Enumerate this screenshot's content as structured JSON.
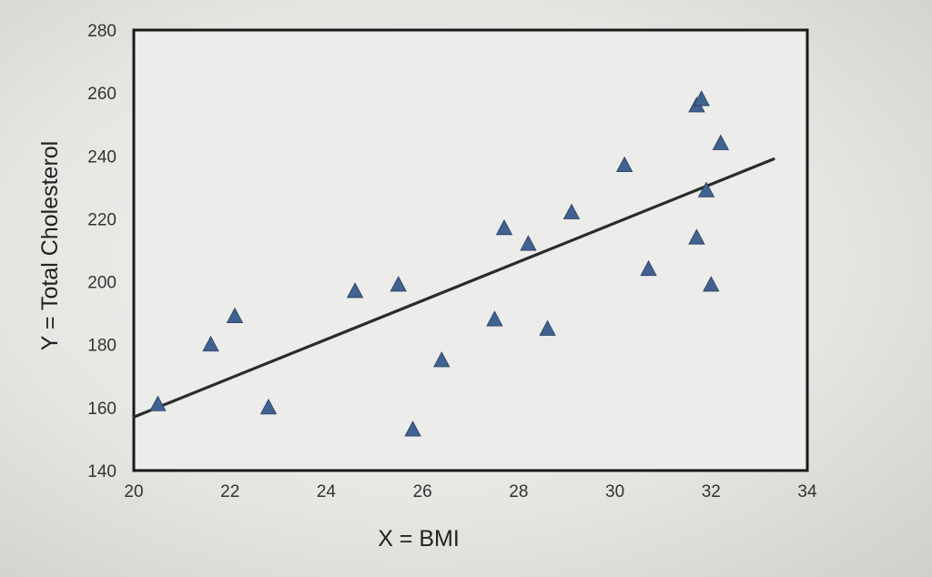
{
  "chart_data": {
    "type": "scatter",
    "title": "",
    "xlabel": "X = BMI",
    "ylabel": "Y = Total Cholesterol",
    "xlim": [
      20,
      34
    ],
    "ylim": [
      140,
      280
    ],
    "xticks": [
      20,
      22,
      24,
      26,
      28,
      30,
      32,
      34
    ],
    "yticks": [
      140,
      160,
      180,
      200,
      220,
      240,
      260,
      280
    ],
    "xtick_labels": [
      "20",
      "22",
      "24",
      "26",
      "28",
      "30",
      "32",
      "34"
    ],
    "ytick_labels": [
      "140",
      "160",
      "180",
      "200",
      "220",
      "240",
      "260",
      "280"
    ],
    "grid": false,
    "marker": "triangle",
    "marker_color": "#3f6291",
    "line_color": "#2b2b2b",
    "series": [
      {
        "x": [
          20.5,
          21.6,
          22.1,
          22.8,
          24.6,
          25.5,
          25.8,
          26.4,
          27.5,
          27.7,
          28.2,
          28.6,
          29.1,
          30.2,
          30.7,
          31.7,
          31.8,
          31.7,
          32.0,
          31.9,
          32.2
        ],
        "y": [
          161,
          180,
          189,
          160,
          197,
          199,
          153,
          175,
          188,
          217,
          212,
          185,
          222,
          237,
          204,
          256,
          258,
          214,
          199,
          229,
          244
        ]
      }
    ],
    "regression_line": {
      "x": [
        20,
        33.3
      ],
      "y": [
        157,
        239
      ]
    }
  }
}
